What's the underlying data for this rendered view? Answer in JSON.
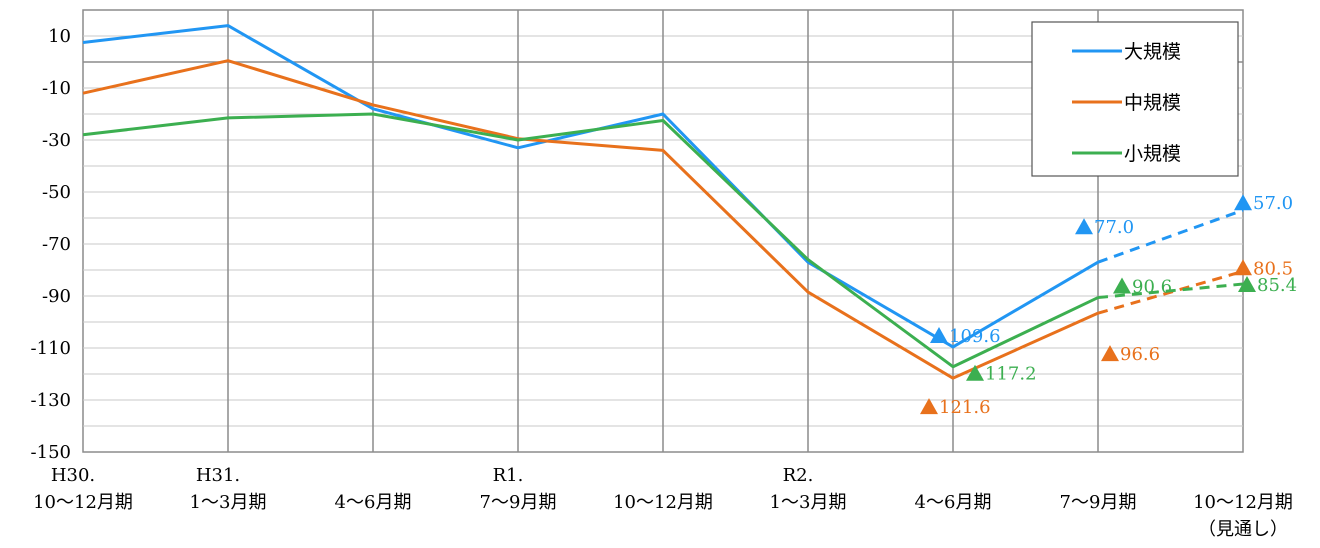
{
  "chart_data": {
    "type": "line",
    "categories": [
      [
        "H30.",
        "10〜12月期"
      ],
      [
        "H31.",
        "1〜3月期"
      ],
      [
        "",
        "4〜6月期"
      ],
      [
        "R1.",
        "7〜9月期"
      ],
      [
        "",
        "10〜12月期"
      ],
      [
        "R2.",
        "1〜3月期"
      ],
      [
        "",
        "4〜6月期"
      ],
      [
        "",
        "7〜9月期"
      ],
      [
        "",
        "10〜12月期",
        "（見通し）"
      ]
    ],
    "ylim": [
      -150,
      20
    ],
    "yticks": [
      10,
      -10,
      -30,
      -50,
      -70,
      -90,
      -110,
      -130,
      -150
    ],
    "grid": true,
    "legend_position": "top-right",
    "series": [
      {
        "name": "大規模",
        "color": "#2196F3",
        "values": [
          7.5,
          14,
          -18,
          -33,
          -20,
          -77,
          -109.6,
          -77,
          -57
        ],
        "projected_from_index": 7
      },
      {
        "name": "中規模",
        "color": "#E8711C",
        "values": [
          -12,
          0.5,
          -16.5,
          -29.5,
          -34,
          -88.5,
          -121.6,
          -96.6,
          -80.5
        ],
        "projected_from_index": 7
      },
      {
        "name": "小規模",
        "color": "#3CAF50",
        "values": [
          -28,
          -21.5,
          -20,
          -30,
          -22.5,
          -76,
          -117.2,
          -90.6,
          -85.4
        ],
        "projected_from_index": 7
      }
    ],
    "annotations": [
      {
        "series": 0,
        "index": 6,
        "text": "109.6",
        "dx": -14,
        "dy": -12,
        "pos": "right"
      },
      {
        "series": 0,
        "index": 7,
        "text": "77.0",
        "dx": -14,
        "dy": -36,
        "pos": "right"
      },
      {
        "series": 0,
        "index": 8,
        "text": "57.0",
        "dx": 0,
        "dy": -8,
        "pos": "right"
      },
      {
        "series": 1,
        "index": 6,
        "text": "121.6",
        "dx": -24,
        "dy": 28,
        "pos": "right"
      },
      {
        "series": 1,
        "index": 7,
        "text": "96.6",
        "dx": 12,
        "dy": 40,
        "pos": "right"
      },
      {
        "series": 1,
        "index": 8,
        "text": "80.5",
        "dx": 0,
        "dy": -4,
        "pos": "right"
      },
      {
        "series": 2,
        "index": 6,
        "text": "117.2",
        "dx": 22,
        "dy": 6,
        "pos": "right"
      },
      {
        "series": 2,
        "index": 7,
        "text": "90.6",
        "dx": 24,
        "dy": -12,
        "pos": "right"
      },
      {
        "series": 2,
        "index": 8,
        "text": "85.4",
        "dx": 4,
        "dy": 0,
        "pos": "right"
      }
    ],
    "annotation_marker": "▲"
  }
}
